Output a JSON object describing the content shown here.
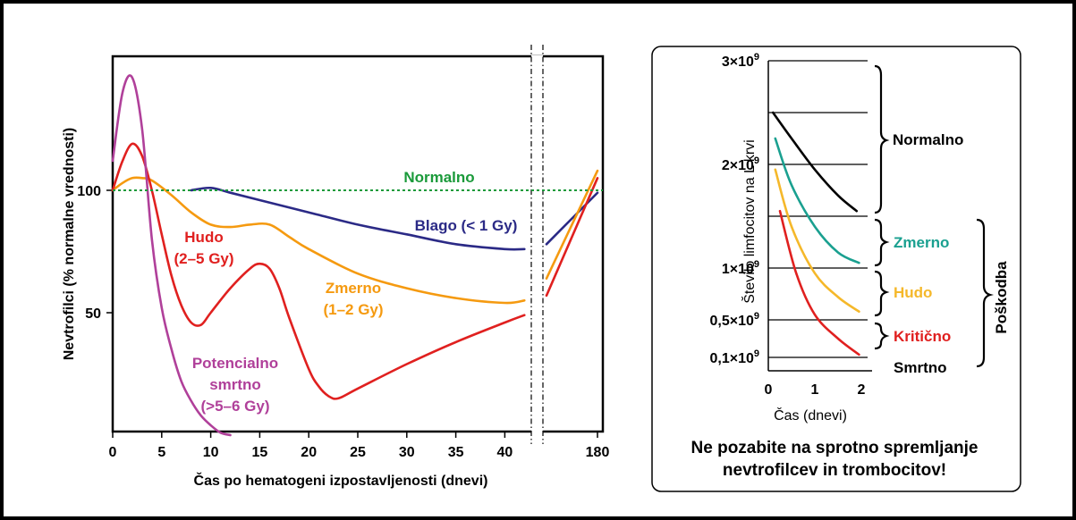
{
  "chart_data": [
    {
      "type": "line",
      "xlabel": "Čas po hematogeni izpostavljenosti (dnevi)",
      "ylabel": "Nevtrofilci (% normalne vrednosti)",
      "x_ticks": [
        "0",
        "5",
        "10",
        "15",
        "20",
        "25",
        "30",
        "35",
        "40",
        "180"
      ],
      "y_ticks": [
        "100",
        "50"
      ],
      "xlim": [
        0,
        45
      ],
      "ylim": [
        0,
        150
      ],
      "axis_break": "between 44 and 180",
      "reference_line": {
        "label": "Normalno",
        "y": 100,
        "color": "#1a9a3a",
        "style": "dotted"
      },
      "series": [
        {
          "key": "blago",
          "label": "Blago (< 1 Gy)",
          "color": "#2b2a86",
          "x": [
            8,
            10,
            12,
            15,
            20,
            25,
            30,
            35,
            40,
            42
          ],
          "y": [
            100,
            101,
            99,
            96,
            91,
            86,
            82,
            78,
            76,
            76
          ],
          "after_break": {
            "x": [
              "start",
              "180"
            ],
            "y": [
              78,
              99
            ]
          }
        },
        {
          "key": "zmerno",
          "label_lines": [
            "Zmerno",
            "(1–2 Gy)"
          ],
          "color": "#f59a10",
          "x": [
            0,
            1,
            2,
            3,
            4,
            6,
            8,
            10,
            12,
            14,
            16,
            18,
            20,
            25,
            30,
            35,
            40,
            42
          ],
          "y": [
            100,
            103,
            105,
            105,
            104,
            98,
            91,
            86,
            85,
            86,
            86,
            81,
            76,
            66,
            60,
            56,
            54,
            55
          ],
          "after_break": {
            "x": [
              "start",
              "180"
            ],
            "y": [
              64,
              108
            ]
          }
        },
        {
          "key": "hudo",
          "label_lines": [
            "Hudo",
            "(2–5 Gy)"
          ],
          "color": "#e0201f",
          "x": [
            0,
            1,
            2,
            3,
            4,
            5,
            6,
            7,
            8,
            9,
            10,
            12,
            14,
            15,
            16,
            17,
            18,
            20,
            21,
            22,
            23,
            25,
            30,
            35,
            40,
            42
          ],
          "y": [
            100,
            112,
            119,
            114,
            100,
            82,
            65,
            53,
            46,
            45,
            50,
            60,
            68,
            70,
            68,
            60,
            48,
            27,
            20,
            16,
            15,
            19,
            29,
            38,
            46,
            49
          ],
          "after_break": {
            "x": [
              "start",
              "180"
            ],
            "y": [
              57,
              105
            ]
          }
        },
        {
          "key": "smrtno",
          "label_lines": [
            "Potencialno",
            "smrtno",
            "(>5–6 Gy)"
          ],
          "color": "#b0409a",
          "x": [
            0,
            1,
            2,
            3,
            4,
            5,
            6,
            7,
            8,
            9,
            10,
            11,
            12
          ],
          "y": [
            112,
            140,
            146,
            125,
            80,
            52,
            35,
            22,
            14,
            8,
            4,
            1,
            0
          ]
        }
      ]
    },
    {
      "type": "line",
      "xlabel": "Čas (dnevi)",
      "ylabel": "Število limfocitov na L krvi",
      "x_ticks": [
        "0",
        "1",
        "2"
      ],
      "xlim": [
        0,
        2
      ],
      "y_tick_labels": {
        "t3e9": [
          "3×10",
          "9"
        ],
        "t2e9": [
          "2×10",
          "9"
        ],
        "t1e9": [
          "1×10",
          "9"
        ],
        "t05e9": [
          "0,5×10",
          "9"
        ],
        "t01e9": [
          "0,1×10",
          "9"
        ]
      },
      "zones": {
        "normalno": "Normalno",
        "zmerno": "Zmerno",
        "hudo": "Hudo",
        "kriticno": "Kritično",
        "smrtno": "Smrtno",
        "poskodba": "Poškodba"
      },
      "series": [
        {
          "key": "normalno",
          "color": "#000000",
          "x": [
            0.1,
            0.5,
            1.0,
            1.5,
            1.9
          ],
          "y": [
            2.5,
            2.25,
            1.95,
            1.7,
            1.55
          ]
        },
        {
          "key": "zmerno",
          "color": "#1aa090",
          "x": [
            0.15,
            0.5,
            1.0,
            1.5,
            1.95
          ],
          "y": [
            2.25,
            1.8,
            1.4,
            1.15,
            1.05
          ]
        },
        {
          "key": "hudo",
          "color": "#f5b82a",
          "x": [
            0.15,
            0.5,
            1.0,
            1.5,
            1.95
          ],
          "y": [
            1.95,
            1.4,
            0.95,
            0.72,
            0.58
          ]
        },
        {
          "key": "kriticno",
          "color": "#e0201f",
          "x": [
            0.25,
            0.6,
            1.0,
            1.5,
            1.95
          ],
          "y": [
            1.55,
            0.95,
            0.55,
            0.3,
            0.13
          ]
        }
      ],
      "note_lines": [
        "Ne pozabite na sprotno spremljanje",
        "nevtrofilcev in trombocitov!"
      ]
    }
  ]
}
